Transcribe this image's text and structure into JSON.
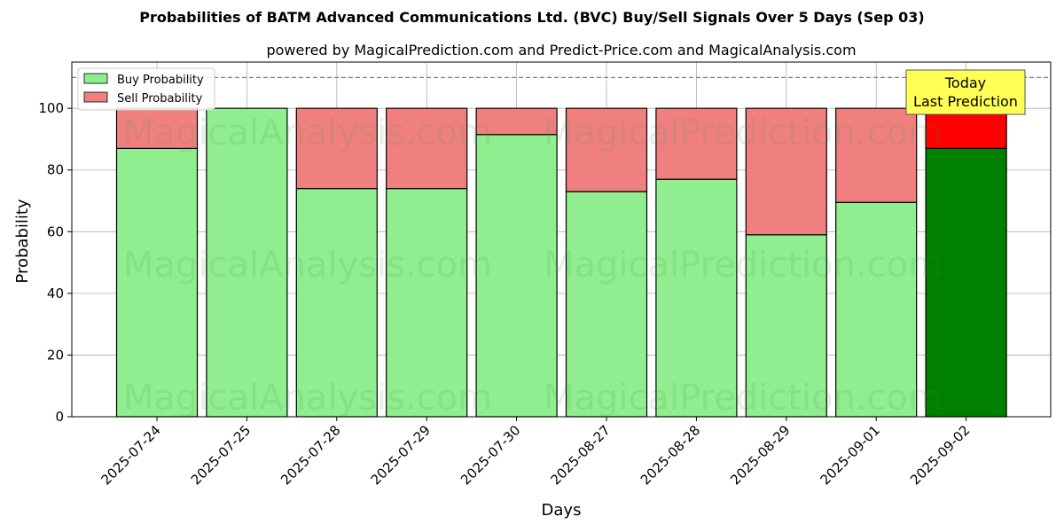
{
  "chart_data": {
    "type": "bar",
    "stacked": true,
    "title": "Probabilities of BATM Advanced Communications Ltd. (BVC) Buy/Sell Signals Over 5 Days (Sep 03)",
    "subtitle": "powered by MagicalPrediction.com and Predict-Price.com and MagicalAnalysis.com",
    "xlabel": "Days",
    "ylabel": "Probability",
    "ylim": [
      0,
      115
    ],
    "yticks": [
      0,
      20,
      40,
      60,
      80,
      100
    ],
    "grid": true,
    "reference_line": 110,
    "categories": [
      "2025-07-24",
      "2025-07-25",
      "2025-07-28",
      "2025-07-29",
      "2025-07-30",
      "2025-08-27",
      "2025-08-28",
      "2025-08-29",
      "2025-09-01",
      "2025-09-02"
    ],
    "series": [
      {
        "name": "Buy Probability",
        "color": "#90ee90",
        "highlight_color": "#008000",
        "values": [
          87,
          100,
          74,
          74,
          91.5,
          73,
          77,
          59,
          69.5,
          87
        ]
      },
      {
        "name": "Sell Probability",
        "color": "#f08080",
        "highlight_color": "#ff0000",
        "values": [
          13,
          0,
          26,
          26,
          8.5,
          27,
          23,
          41,
          30.5,
          13
        ]
      }
    ],
    "highlight_index": 9,
    "legend_position": "top-left",
    "annotation": {
      "lines": [
        "Today",
        "Last Prediction"
      ],
      "background": "#ffff55"
    },
    "watermarks": [
      "MagicalAnalysis.com",
      "MagicalPrediction.com"
    ]
  }
}
